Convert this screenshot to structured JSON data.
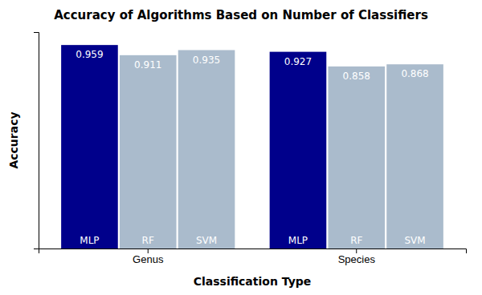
{
  "chart_data": {
    "type": "bar",
    "title": "Accuracy of Algorithms Based on Number of Classifiers",
    "xlabel": "Classification Type",
    "ylabel": "Accuracy",
    "categories": [
      "Genus",
      "Species"
    ],
    "series": [
      {
        "name": "MLP",
        "color": "#00008B",
        "values": [
          0.959,
          0.927
        ]
      },
      {
        "name": "RF",
        "color": "#AABBCC",
        "values": [
          0.911,
          0.858
        ]
      },
      {
        "name": "SVM",
        "color": "#AABBCC",
        "values": [
          0.935,
          0.868
        ]
      }
    ],
    "ylim": [
      0.0,
      1.02
    ],
    "yticks": [],
    "grid": false,
    "data_labels": true,
    "tick_labels": "x"
  }
}
